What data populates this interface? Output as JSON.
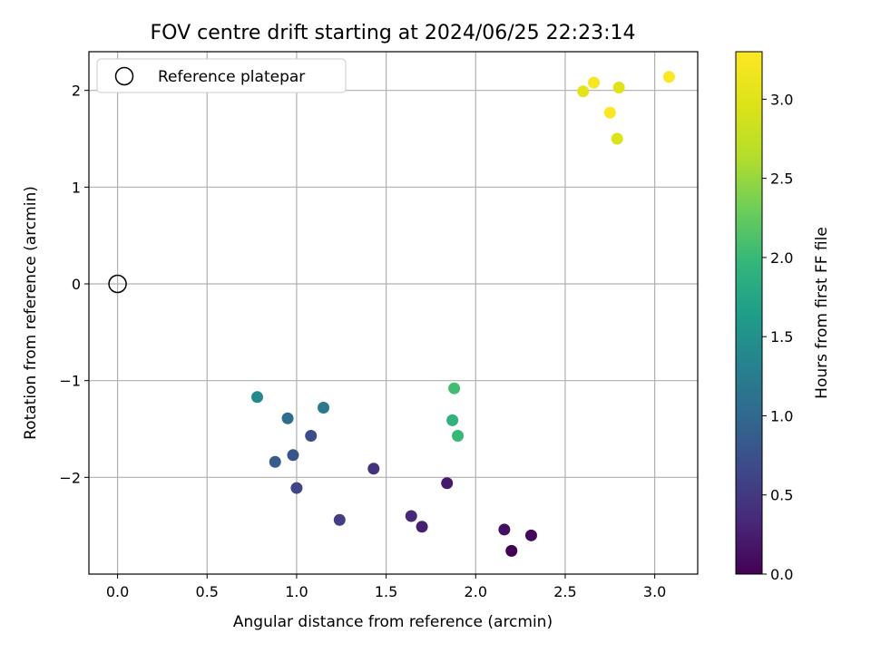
{
  "chart_data": {
    "type": "scatter",
    "title": "FOV centre drift starting at 2024/06/25 22:23:14",
    "xlabel": "Angular distance from reference (arcmin)",
    "ylabel": "Rotation from reference (arcmin)",
    "xlim": [
      -0.16,
      3.24
    ],
    "ylim": [
      -3.0,
      2.4
    ],
    "xticks": [
      0.0,
      0.5,
      1.0,
      1.5,
      2.0,
      2.5,
      3.0
    ],
    "xtick_labels": [
      "0.0",
      "0.5",
      "1.0",
      "1.5",
      "2.0",
      "2.5",
      "3.0"
    ],
    "yticks": [
      -2,
      -1,
      0,
      1,
      2
    ],
    "ytick_labels": [
      "−2",
      "−1",
      "0",
      "1",
      "2"
    ],
    "grid": true,
    "legend": {
      "position": "top-left",
      "entries": [
        "Reference platepar"
      ]
    },
    "reference_point": {
      "x": 0.0,
      "y": 0.0,
      "marker": "open-circle"
    },
    "colorbar": {
      "label": "Hours from first FF file",
      "range": [
        0.0,
        3.3
      ],
      "ticks": [
        0.0,
        0.5,
        1.0,
        1.5,
        2.0,
        2.5,
        3.0
      ],
      "tick_labels": [
        "0.0",
        "0.5",
        "1.0",
        "1.5",
        "2.0",
        "2.5",
        "3.0"
      ],
      "colormap": "viridis"
    },
    "points": [
      {
        "x": 2.2,
        "y": -2.76,
        "c": 0.0
      },
      {
        "x": 2.31,
        "y": -2.6,
        "c": 0.07
      },
      {
        "x": 2.16,
        "y": -2.54,
        "c": 0.13
      },
      {
        "x": 1.84,
        "y": -2.06,
        "c": 0.2
      },
      {
        "x": 1.7,
        "y": -2.51,
        "c": 0.27
      },
      {
        "x": 1.64,
        "y": -2.4,
        "c": 0.33
      },
      {
        "x": 1.43,
        "y": -1.91,
        "c": 0.45
      },
      {
        "x": 1.24,
        "y": -2.44,
        "c": 0.55
      },
      {
        "x": 1.0,
        "y": -2.11,
        "c": 0.62
      },
      {
        "x": 1.08,
        "y": -1.57,
        "c": 0.7
      },
      {
        "x": 0.98,
        "y": -1.77,
        "c": 0.78
      },
      {
        "x": 0.88,
        "y": -1.84,
        "c": 0.85
      },
      {
        "x": 0.95,
        "y": -1.39,
        "c": 1.05
      },
      {
        "x": 1.15,
        "y": -1.28,
        "c": 1.2
      },
      {
        "x": 0.78,
        "y": -1.17,
        "c": 1.4
      },
      {
        "x": 1.87,
        "y": -1.41,
        "c": 1.9
      },
      {
        "x": 1.9,
        "y": -1.57,
        "c": 2.0
      },
      {
        "x": 1.88,
        "y": -1.08,
        "c": 2.05
      },
      {
        "x": 2.6,
        "y": 1.99,
        "c": 3.05
      },
      {
        "x": 2.8,
        "y": 2.03,
        "c": 3.0
      },
      {
        "x": 2.79,
        "y": 1.5,
        "c": 2.95
      },
      {
        "x": 2.66,
        "y": 2.08,
        "c": 3.25
      },
      {
        "x": 2.75,
        "y": 1.77,
        "c": 3.3
      },
      {
        "x": 3.08,
        "y": 2.14,
        "c": 3.28
      }
    ]
  }
}
